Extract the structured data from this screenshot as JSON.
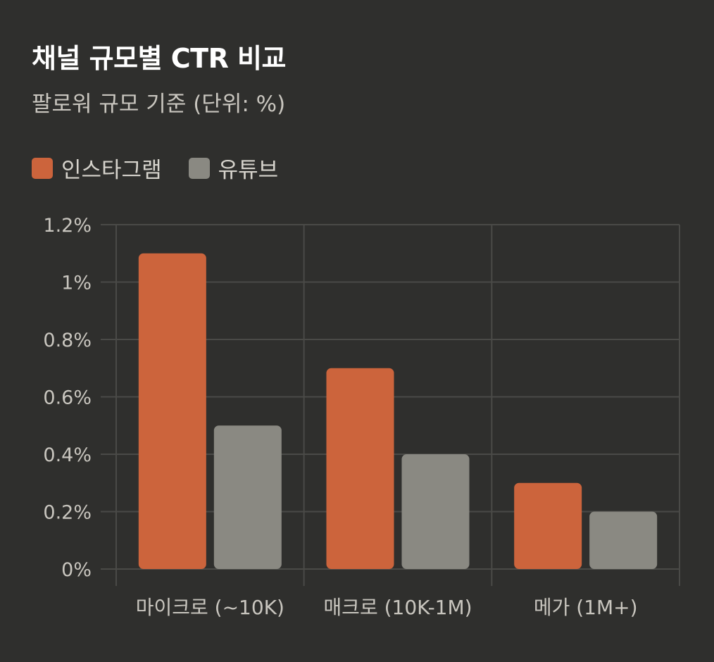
{
  "chart_data": {
    "type": "bar",
    "title": "채널 규모별 CTR 비교",
    "subtitle": "팔로워 규모 기준 (단위: %)",
    "categories": [
      "마이크로 (~10K)",
      "매크로 (10K-1M)",
      "메가 (1M+)"
    ],
    "series": [
      {
        "name": "인스타그램",
        "values": [
          1.1,
          0.7,
          0.3
        ],
        "color": "#cc643c"
      },
      {
        "name": "유튜브",
        "values": [
          0.5,
          0.4,
          0.2
        ],
        "color": "#8a8982"
      }
    ],
    "y_ticks": [
      "0%",
      "0.2%",
      "0.4%",
      "0.6%",
      "0.8%",
      "1%",
      "1.2%"
    ],
    "y_tick_values": [
      0,
      0.2,
      0.4,
      0.6,
      0.8,
      1.0,
      1.2
    ],
    "ylim": [
      0,
      1.2
    ],
    "grid": true,
    "legend_position": "top-left"
  }
}
